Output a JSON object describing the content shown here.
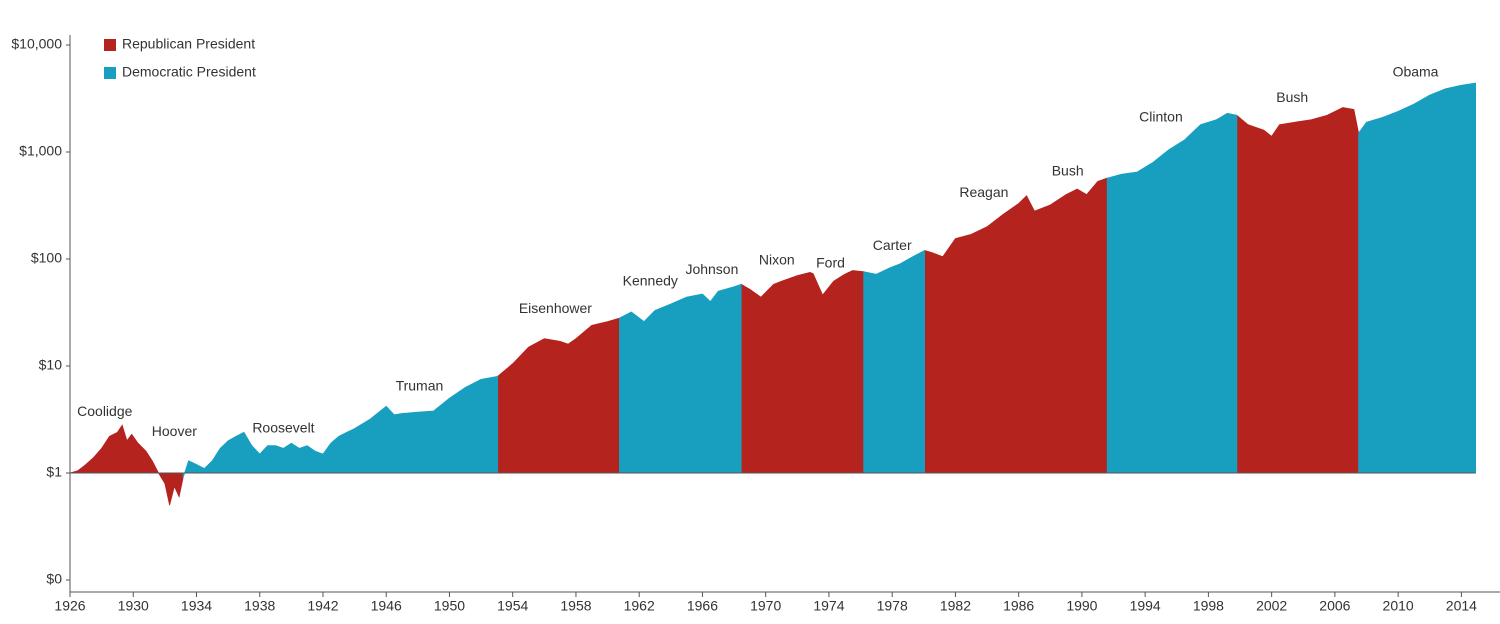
{
  "chart_data": {
    "type": "area",
    "log_scale": true,
    "area_base": 1,
    "legend": "top-left",
    "xlim": [
      1926,
      2016
    ],
    "xticks": [
      1926,
      1930,
      1934,
      1938,
      1942,
      1946,
      1950,
      1954,
      1958,
      1962,
      1966,
      1970,
      1974,
      1978,
      1982,
      1986,
      1990,
      1994,
      1998,
      2002,
      2006,
      2010,
      2014
    ],
    "ylim": [
      0.1,
      10000
    ],
    "yticks": [
      {
        "value": 0.1,
        "label": "$0"
      },
      {
        "value": 1,
        "label": "$1"
      },
      {
        "value": 10,
        "label": "$10"
      },
      {
        "value": 100,
        "label": "$100"
      },
      {
        "value": 1000,
        "label": "$1,000"
      },
      {
        "value": 10000,
        "label": "$10,000"
      }
    ],
    "series": [
      {
        "name": "Republican President",
        "color": "#b5231f",
        "x": [
          1926,
          1926.5,
          1927,
          1927.5,
          1928,
          1928.5,
          1929,
          1929.3,
          1929.6,
          1929.9,
          1930.3,
          1930.8,
          1931.2,
          1931.6,
          1932,
          1932.3,
          1932.6,
          1932.9,
          1933.15,
          null,
          1953.05,
          1954,
          1955,
          1956,
          1957,
          1957.5,
          1958,
          1959,
          1960,
          1960.75,
          null,
          1968.45,
          1969,
          1969.7,
          1970.5,
          1971,
          1972,
          1972.8,
          1973,
          1973.6,
          1974.3,
          1975,
          1975.5,
          1976.2,
          null,
          1980.05,
          1980.5,
          1981.2,
          1982,
          1983,
          1984,
          1985,
          1986,
          1986.5,
          1987,
          1988,
          1989,
          1989.7,
          1990.3,
          1991,
          1991.6,
          null,
          1999.8,
          2000.5,
          2001.5,
          2002,
          2002.5,
          2003.5,
          2004.5,
          2005.5,
          2006.5,
          2007.2,
          2007.5
        ],
        "values": [
          1.0,
          1.05,
          1.2,
          1.4,
          1.7,
          2.2,
          2.4,
          2.8,
          2.0,
          2.3,
          1.9,
          1.6,
          1.3,
          1.0,
          0.8,
          0.5,
          0.75,
          0.6,
          0.9,
          null,
          8,
          10.5,
          15,
          18,
          17,
          16,
          18,
          24,
          26,
          28,
          null,
          58,
          52,
          44,
          58,
          62,
          70,
          75,
          73,
          46,
          62,
          72,
          78,
          76,
          null,
          120,
          115,
          105,
          155,
          170,
          200,
          260,
          330,
          390,
          280,
          320,
          400,
          450,
          400,
          530,
          570,
          null,
          2200,
          1800,
          1600,
          1400,
          1800,
          1900,
          2000,
          2200,
          2600,
          2500,
          1500
        ]
      },
      {
        "name": "Democratic President",
        "color": "#189fc0",
        "x": [
          1933.15,
          1933.5,
          1934,
          1934.5,
          1935,
          1935.5,
          1936,
          1936.5,
          1937,
          1937.5,
          1938,
          1938.5,
          1939,
          1939.5,
          1940,
          1940.5,
          1941,
          1941.5,
          1942,
          1942.5,
          1943,
          1943.5,
          1944,
          1945,
          1946,
          1946.5,
          1947,
          1948,
          1949,
          1950,
          1951,
          1952,
          1953.05,
          null,
          1960.75,
          1961.5,
          1962.3,
          1963,
          1964,
          1965,
          1966,
          1966.5,
          1967,
          1968,
          1968.45,
          null,
          1976.2,
          1977,
          1977.8,
          1978.5,
          1979.3,
          1980.05,
          null,
          1991.6,
          1992.5,
          1993.5,
          1994.5,
          1995.5,
          1996.5,
          1997.5,
          1998.5,
          1999.2,
          1999.8,
          null,
          2007.5,
          2008,
          2009,
          2010,
          2011,
          2012,
          2013,
          2014,
          2014.9
        ],
        "values": [
          0.9,
          1.3,
          1.2,
          1.1,
          1.3,
          1.7,
          2.0,
          2.2,
          2.4,
          1.8,
          1.5,
          1.8,
          1.8,
          1.7,
          1.9,
          1.7,
          1.8,
          1.6,
          1.5,
          1.9,
          2.2,
          2.4,
          2.6,
          3.2,
          4.2,
          3.5,
          3.6,
          3.7,
          3.8,
          5.0,
          6.3,
          7.5,
          8,
          null,
          28,
          32,
          26,
          33,
          38,
          44,
          47,
          40,
          50,
          55,
          58,
          null,
          76,
          72,
          82,
          90,
          105,
          120,
          null,
          570,
          620,
          650,
          800,
          1050,
          1300,
          1800,
          2000,
          2300,
          2200,
          null,
          1500,
          1900,
          2100,
          2400,
          2800,
          3400,
          3900,
          4200,
          4400
        ]
      }
    ],
    "annotations": [
      {
        "text": "Coolidge",
        "x": 1928.2,
        "y": 3.7
      },
      {
        "text": "Hoover",
        "x": 1932.6,
        "y": 2.4
      },
      {
        "text": "Roosevelt",
        "x": 1939.5,
        "y": 2.6
      },
      {
        "text": "Truman",
        "x": 1948.1,
        "y": 6.4
      },
      {
        "text": "Eisenhower",
        "x": 1956.7,
        "y": 34
      },
      {
        "text": "Kennedy",
        "x": 1962.7,
        "y": 61
      },
      {
        "text": "Johnson",
        "x": 1966.6,
        "y": 78
      },
      {
        "text": "Nixon",
        "x": 1970.7,
        "y": 96
      },
      {
        "text": "Ford",
        "x": 1974.1,
        "y": 90
      },
      {
        "text": "Carter",
        "x": 1978,
        "y": 132
      },
      {
        "text": "Reagan",
        "x": 1983.8,
        "y": 410
      },
      {
        "text": "Bush",
        "x": 1989.1,
        "y": 650
      },
      {
        "text": "Clinton",
        "x": 1995,
        "y": 2080
      },
      {
        "text": "Bush",
        "x": 2003.3,
        "y": 3170
      },
      {
        "text": "Obama",
        "x": 2011.1,
        "y": 5500
      }
    ]
  }
}
